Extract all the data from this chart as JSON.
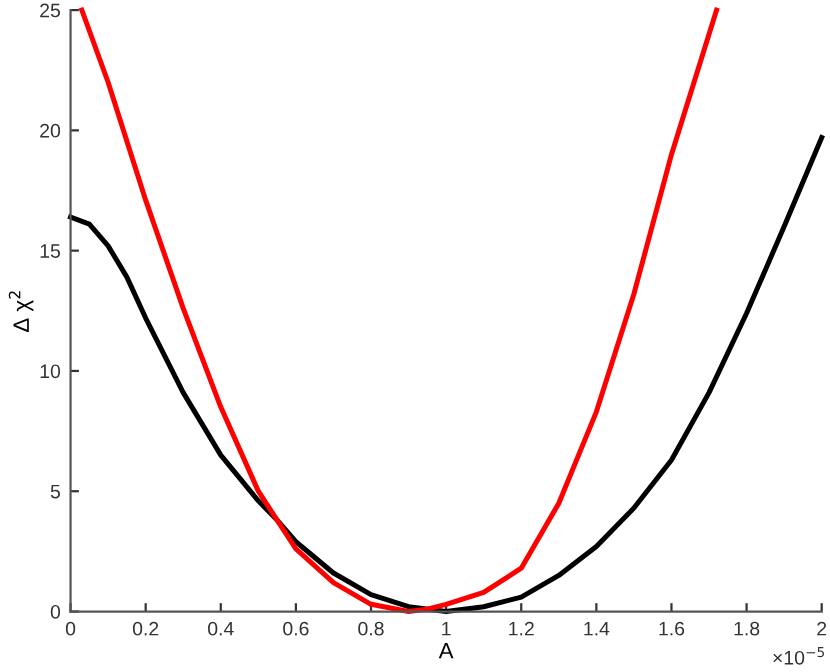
{
  "chart_data": {
    "type": "line",
    "xlabel": "A",
    "ylabel": "Δ χ$^{2}$",
    "annotations": [
      "×10$^{−5}$"
    ],
    "xlim": [
      0,
      2
    ],
    "ylim": [
      0,
      25
    ],
    "xticks": [
      0,
      0.2,
      0.4,
      0.6,
      0.8,
      1,
      1.2,
      1.4,
      1.6,
      1.8,
      2
    ],
    "yticks": [
      0,
      5,
      10,
      15,
      20,
      25
    ],
    "grid": false,
    "line_style": "solid",
    "marker": "none",
    "series": [
      {
        "color": "#000000",
        "x": [
          0,
          0.05,
          0.1,
          0.15,
          0.2,
          0.3,
          0.4,
          0.5,
          0.55,
          0.6,
          0.7,
          0.8,
          0.9,
          1.0,
          1.1,
          1.2,
          1.3,
          1.4,
          1.5,
          1.6,
          1.7,
          1.8,
          1.9,
          2.0
        ],
        "values": [
          16.4,
          16.1,
          15.2,
          13.9,
          12.2,
          9.1,
          6.5,
          4.6,
          3.8,
          2.9,
          1.6,
          0.7,
          0.2,
          0,
          0.2,
          0.6,
          1.5,
          2.7,
          4.3,
          6.3,
          9.1,
          12.4,
          16.0,
          19.7
        ]
      },
      {
        "color": "#ff0000",
        "x": [
          0.03,
          0.1,
          0.2,
          0.3,
          0.4,
          0.5,
          0.55,
          0.6,
          0.7,
          0.8,
          0.9,
          0.95,
          1.0,
          1.1,
          1.2,
          1.3,
          1.4,
          1.5,
          1.6,
          1.72
        ],
        "values": [
          25,
          22.0,
          17.1,
          12.6,
          8.5,
          5.0,
          3.8,
          2.6,
          1.2,
          0.3,
          0,
          0.1,
          0.3,
          0.8,
          1.8,
          4.5,
          8.3,
          13.2,
          19.0,
          25
        ]
      }
    ]
  }
}
